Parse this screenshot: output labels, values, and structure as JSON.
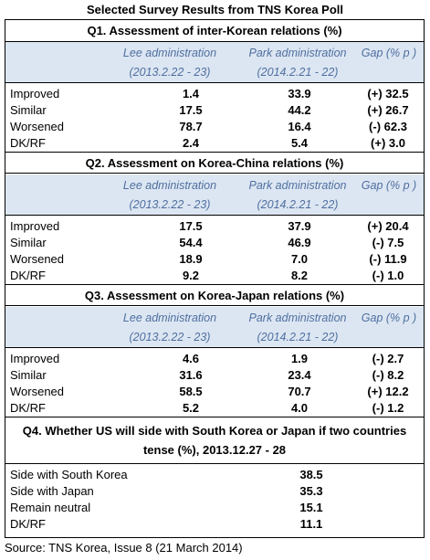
{
  "title": "Selected Survey Results from TNS Korea Poll",
  "headers": {
    "lee": "Lee administration",
    "lee_date": "(2013.2.22 - 23)",
    "park": "Park administration",
    "park_date": "(2014.2.21 - 22)",
    "gap": "Gap (% p )"
  },
  "q1": {
    "title": "Q1. Assessment of inter-Korean relations (%)",
    "rows": [
      {
        "label": "Improved",
        "lee": "1.4",
        "park": "33.9",
        "gap": "(+) 32.5"
      },
      {
        "label": "Similar",
        "lee": "17.5",
        "park": "44.2",
        "gap": "(+) 26.7"
      },
      {
        "label": "Worsened",
        "lee": "78.7",
        "park": "16.4",
        "gap": "(-) 62.3"
      },
      {
        "label": "DK/RF",
        "lee": "2.4",
        "park": "5.4",
        "gap": "(+) 3.0"
      }
    ]
  },
  "q2": {
    "title": "Q2. Assessment on Korea-China relations (%)",
    "rows": [
      {
        "label": "Improved",
        "lee": "17.5",
        "park": "37.9",
        "gap": "(+) 20.4"
      },
      {
        "label": "Similar",
        "lee": "54.4",
        "park": "46.9",
        "gap": "(-) 7.5"
      },
      {
        "label": "Worsened",
        "lee": "18.9",
        "park": "7.0",
        "gap": "(-) 11.9"
      },
      {
        "label": "DK/RF",
        "lee": "9.2",
        "park": "8.2",
        "gap": "(-) 1.0"
      }
    ]
  },
  "q3": {
    "title": "Q3. Assessment on Korea-Japan relations (%)",
    "rows": [
      {
        "label": "Improved",
        "lee": "4.6",
        "park": "1.9",
        "gap": "(-) 2.7"
      },
      {
        "label": "Similar",
        "lee": "31.6",
        "park": "23.4",
        "gap": "(-) 8.2"
      },
      {
        "label": "Worsened",
        "lee": "58.5",
        "park": "70.7",
        "gap": "(+) 12.2"
      },
      {
        "label": "DK/RF",
        "lee": "5.2",
        "park": "4.0",
        "gap": "(-) 1.2"
      }
    ]
  },
  "q4": {
    "title_line1": "Q4. Whether US will side with South Korea or Japan if two countries",
    "title_line2": "tense (%), 2013.12.27 - 28",
    "rows": [
      {
        "label": "Side with South Korea",
        "value": "38.5"
      },
      {
        "label": "Side with Japan",
        "value": "35.3"
      },
      {
        "label": "Remain neutral",
        "value": "15.1"
      },
      {
        "label": "DK/RF",
        "value": "11.1"
      }
    ]
  },
  "source": "Source: TNS Korea, Issue 8 (21 March 2014)"
}
